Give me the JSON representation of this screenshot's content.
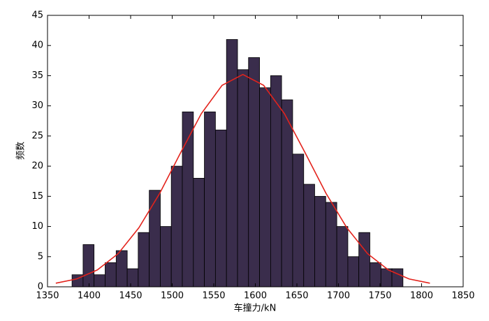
{
  "chart_data": {
    "type": "histogram",
    "xlabel": "车撞力/kN",
    "ylabel": "频数",
    "bins": [
      1379.5,
      1392.8,
      1406.0,
      1419.3,
      1432.6,
      1445.9,
      1459.1,
      1472.4,
      1485.7,
      1498.9,
      1512.2,
      1525.5,
      1538.7,
      1552.0,
      1565.3,
      1578.6,
      1591.8,
      1605.1,
      1618.4,
      1631.6,
      1644.9,
      1658.2,
      1671.4,
      1684.7,
      1698.0,
      1711.3,
      1724.5,
      1737.8,
      1751.1,
      1764.3,
      1777.6
    ],
    "counts": [
      2,
      7,
      2,
      4,
      6,
      3,
      9,
      16,
      10,
      20,
      29,
      18,
      29,
      26,
      41,
      36,
      38,
      33,
      35,
      31,
      22,
      17,
      15,
      14,
      10,
      5,
      9,
      4,
      3,
      3
    ],
    "color": "#3a2d4c",
    "curve": {
      "color": "#e3231c",
      "x": [
        1360,
        1385,
        1410,
        1435,
        1460,
        1485,
        1510,
        1535,
        1560,
        1585,
        1610,
        1635,
        1660,
        1685,
        1710,
        1735,
        1760,
        1785,
        1810
      ],
      "values": [
        0.6,
        1.3,
        2.8,
        5.5,
        9.8,
        15.5,
        22.2,
        28.7,
        33.4,
        35.2,
        33.4,
        28.7,
        22.2,
        15.5,
        9.8,
        5.5,
        2.8,
        1.3,
        0.6
      ]
    },
    "xlim": [
      1350,
      1850
    ],
    "xticks": [
      1350,
      1400,
      1450,
      1500,
      1550,
      1600,
      1650,
      1700,
      1750,
      1800,
      1850
    ],
    "ylim": [
      0,
      45
    ],
    "yticks": [
      0,
      5,
      10,
      15,
      20,
      25,
      30,
      35,
      40,
      45
    ]
  }
}
